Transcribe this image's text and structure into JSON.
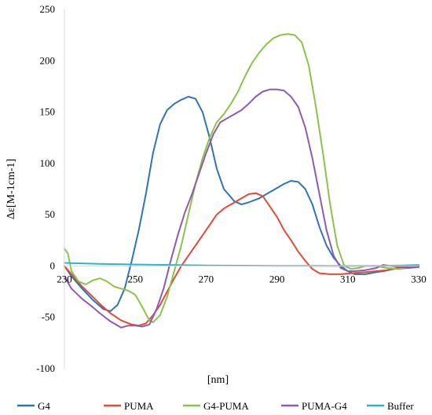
{
  "chart_data": {
    "type": "line",
    "xlabel": "[nm]",
    "ylabel": "Δε[M-1cm-1]",
    "xlim": [
      230,
      330
    ],
    "ylim": [
      -100,
      250
    ],
    "x_ticks": [
      "230",
      "250",
      "270",
      "290",
      "310",
      "330"
    ],
    "y_ticks": [
      "-100",
      "-50",
      "0",
      "50",
      "100",
      "150",
      "200",
      "250"
    ],
    "grid": false,
    "legend_position": "bottom",
    "series": [
      {
        "name": "G4",
        "color": "#2E75B6",
        "points": [
          [
            230,
            0
          ],
          [
            232,
            -10
          ],
          [
            235,
            -22
          ],
          [
            238,
            -33
          ],
          [
            241,
            -42
          ],
          [
            243,
            -44
          ],
          [
            245,
            -38
          ],
          [
            247,
            -22
          ],
          [
            249,
            5
          ],
          [
            251,
            35
          ],
          [
            253,
            70
          ],
          [
            255,
            110
          ],
          [
            257,
            138
          ],
          [
            259,
            152
          ],
          [
            261,
            158
          ],
          [
            263,
            162
          ],
          [
            265,
            165
          ],
          [
            267,
            163
          ],
          [
            269,
            150
          ],
          [
            271,
            125
          ],
          [
            273,
            95
          ],
          [
            275,
            75
          ],
          [
            278,
            63
          ],
          [
            280,
            60
          ],
          [
            282,
            62
          ],
          [
            285,
            66
          ],
          [
            288,
            72
          ],
          [
            290,
            76
          ],
          [
            292,
            80
          ],
          [
            294,
            83
          ],
          [
            296,
            82
          ],
          [
            298,
            75
          ],
          [
            300,
            60
          ],
          [
            302,
            38
          ],
          [
            304,
            20
          ],
          [
            306,
            8
          ],
          [
            308,
            0
          ],
          [
            310,
            -5
          ],
          [
            312,
            -8
          ],
          [
            315,
            -8
          ],
          [
            318,
            -6
          ],
          [
            320,
            -5
          ],
          [
            323,
            -3
          ],
          [
            325,
            -1
          ],
          [
            327,
            0
          ],
          [
            330,
            0
          ]
        ]
      },
      {
        "name": "PUMA",
        "color": "#E04B3A",
        "points": [
          [
            230,
            0
          ],
          [
            232,
            -8
          ],
          [
            235,
            -20
          ],
          [
            238,
            -30
          ],
          [
            240,
            -37
          ],
          [
            243,
            -46
          ],
          [
            246,
            -53
          ],
          [
            249,
            -57
          ],
          [
            251,
            -58
          ],
          [
            253,
            -56
          ],
          [
            255,
            -48
          ],
          [
            257,
            -38
          ],
          [
            259,
            -25
          ],
          [
            261,
            -12
          ],
          [
            263,
            0
          ],
          [
            265,
            10
          ],
          [
            267,
            20
          ],
          [
            269,
            30
          ],
          [
            271,
            40
          ],
          [
            273,
            50
          ],
          [
            275,
            56
          ],
          [
            278,
            62
          ],
          [
            280,
            66
          ],
          [
            282,
            70
          ],
          [
            284,
            71
          ],
          [
            286,
            68
          ],
          [
            288,
            58
          ],
          [
            290,
            48
          ],
          [
            292,
            35
          ],
          [
            294,
            25
          ],
          [
            296,
            14
          ],
          [
            298,
            5
          ],
          [
            300,
            -3
          ],
          [
            302,
            -7
          ],
          [
            305,
            -8
          ],
          [
            308,
            -8
          ],
          [
            311,
            -7
          ],
          [
            315,
            -6
          ],
          [
            318,
            -5
          ],
          [
            321,
            -4
          ],
          [
            324,
            -2
          ],
          [
            327,
            -1
          ],
          [
            330,
            -1
          ]
        ]
      },
      {
        "name": "G4-PUMA",
        "color": "#8BC34A",
        "points": [
          [
            230,
            17
          ],
          [
            231,
            12
          ],
          [
            232,
            -5
          ],
          [
            234,
            -15
          ],
          [
            236,
            -18
          ],
          [
            238,
            -14
          ],
          [
            240,
            -12
          ],
          [
            242,
            -15
          ],
          [
            244,
            -20
          ],
          [
            246,
            -22
          ],
          [
            248,
            -24
          ],
          [
            250,
            -28
          ],
          [
            252,
            -40
          ],
          [
            254,
            -53
          ],
          [
            255,
            -55
          ],
          [
            257,
            -48
          ],
          [
            259,
            -30
          ],
          [
            261,
            -5
          ],
          [
            263,
            20
          ],
          [
            265,
            50
          ],
          [
            267,
            80
          ],
          [
            269,
            105
          ],
          [
            271,
            125
          ],
          [
            273,
            140
          ],
          [
            275,
            148
          ],
          [
            277,
            158
          ],
          [
            279,
            170
          ],
          [
            281,
            185
          ],
          [
            283,
            198
          ],
          [
            285,
            208
          ],
          [
            287,
            216
          ],
          [
            289,
            222
          ],
          [
            291,
            225
          ],
          [
            293,
            226
          ],
          [
            295,
            225
          ],
          [
            297,
            218
          ],
          [
            299,
            195
          ],
          [
            301,
            155
          ],
          [
            303,
            110
          ],
          [
            305,
            60
          ],
          [
            307,
            20
          ],
          [
            309,
            0
          ],
          [
            311,
            -3
          ],
          [
            313,
            -2
          ],
          [
            315,
            0
          ],
          [
            318,
            0
          ],
          [
            321,
            -2
          ],
          [
            324,
            -3
          ],
          [
            327,
            -2
          ],
          [
            330,
            -1
          ]
        ]
      },
      {
        "name": "PUMA-G4",
        "color": "#8E5BAF",
        "points": [
          [
            230,
            -10
          ],
          [
            232,
            -22
          ],
          [
            235,
            -32
          ],
          [
            238,
            -40
          ],
          [
            240,
            -46
          ],
          [
            243,
            -54
          ],
          [
            246,
            -60
          ],
          [
            248,
            -58
          ],
          [
            250,
            -58
          ],
          [
            252,
            -59
          ],
          [
            254,
            -57
          ],
          [
            256,
            -42
          ],
          [
            258,
            -22
          ],
          [
            260,
            5
          ],
          [
            262,
            30
          ],
          [
            264,
            52
          ],
          [
            266,
            70
          ],
          [
            268,
            90
          ],
          [
            270,
            110
          ],
          [
            272,
            128
          ],
          [
            274,
            140
          ],
          [
            276,
            144
          ],
          [
            278,
            148
          ],
          [
            280,
            152
          ],
          [
            282,
            158
          ],
          [
            284,
            165
          ],
          [
            286,
            170
          ],
          [
            288,
            172
          ],
          [
            290,
            172
          ],
          [
            292,
            171
          ],
          [
            294,
            165
          ],
          [
            296,
            155
          ],
          [
            298,
            135
          ],
          [
            300,
            105
          ],
          [
            302,
            70
          ],
          [
            304,
            35
          ],
          [
            306,
            10
          ],
          [
            308,
            -2
          ],
          [
            310,
            -5
          ],
          [
            312,
            -5
          ],
          [
            315,
            -4
          ],
          [
            318,
            -2
          ],
          [
            320,
            1
          ],
          [
            322,
            0
          ],
          [
            325,
            -1
          ],
          [
            327,
            -2
          ],
          [
            330,
            -1
          ]
        ]
      },
      {
        "name": "Buffer",
        "color": "#2BB5C9",
        "points": [
          [
            230,
            3
          ],
          [
            240,
            2
          ],
          [
            250,
            1.5
          ],
          [
            260,
            1
          ],
          [
            270,
            0.5
          ],
          [
            280,
            0.3
          ],
          [
            290,
            0.2
          ],
          [
            300,
            0.2
          ],
          [
            310,
            0
          ],
          [
            320,
            0
          ],
          [
            330,
            1
          ]
        ]
      }
    ]
  }
}
